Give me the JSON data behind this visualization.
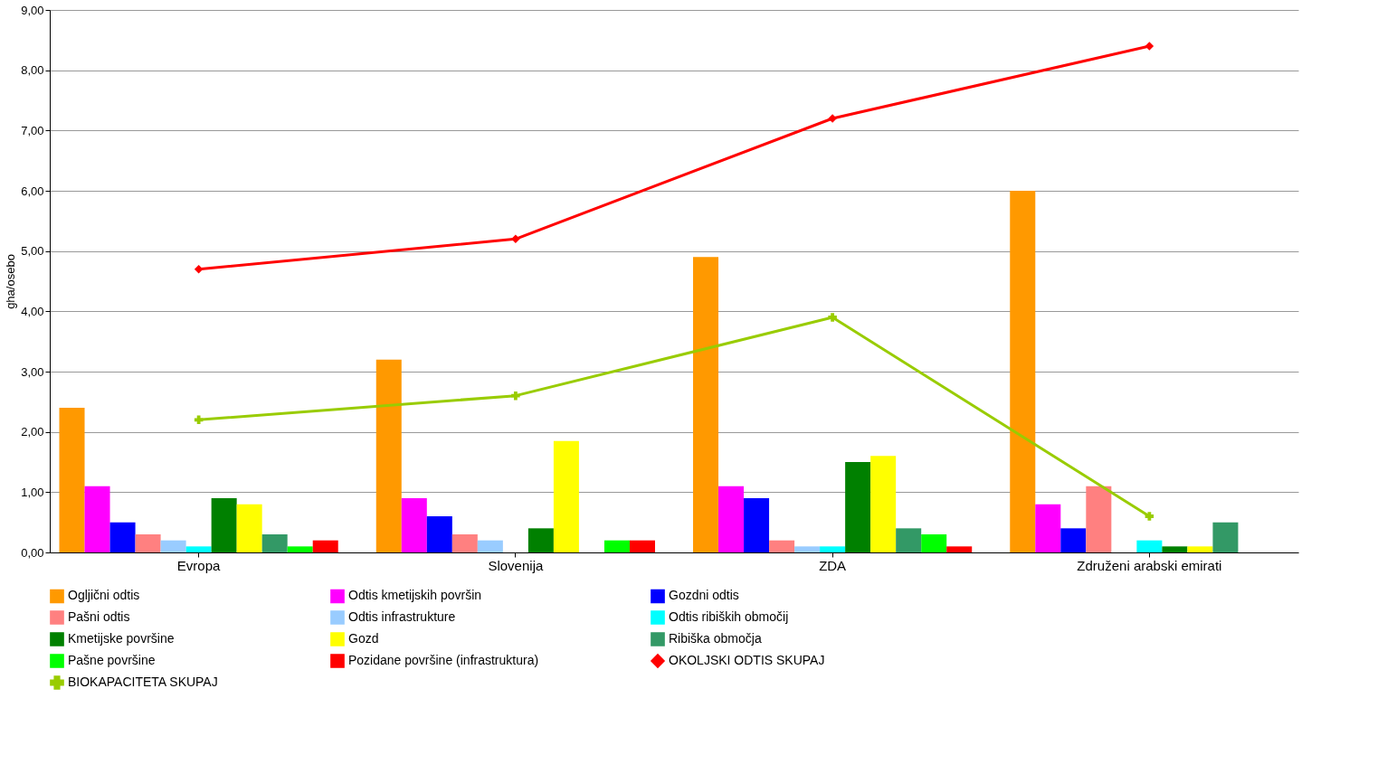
{
  "chart_data": {
    "type": "bar",
    "ylabel": "gha/osebo",
    "categories": [
      "Evropa",
      "Slovenija",
      "ZDA",
      "Združeni arabski emirati"
    ],
    "ylim": [
      0,
      9
    ],
    "yticks": [
      {
        "value": 0,
        "label": "0,00"
      },
      {
        "value": 1,
        "label": "1,00"
      },
      {
        "value": 2,
        "label": "2,00"
      },
      {
        "value": 3,
        "label": "3,00"
      },
      {
        "value": 4,
        "label": "4,00"
      },
      {
        "value": 5,
        "label": "5,00"
      },
      {
        "value": 6,
        "label": "6,00"
      },
      {
        "value": 7,
        "label": "7,00"
      },
      {
        "value": 8,
        "label": "8,00"
      },
      {
        "value": 9,
        "label": "9,00"
      }
    ],
    "grid": "y",
    "legend": "bottom",
    "series": [
      {
        "name": "Ogljični odtis",
        "color": "#ff9900",
        "values": [
          2.4,
          3.2,
          4.9,
          6.0
        ]
      },
      {
        "name": "Odtis kmetijskih površin",
        "color": "#ff00ff",
        "values": [
          1.1,
          0.9,
          1.1,
          0.8
        ]
      },
      {
        "name": "Gozdni odtis",
        "color": "#0000ff",
        "values": [
          0.5,
          0.6,
          0.9,
          0.4
        ]
      },
      {
        "name": "Pašni odtis",
        "color": "#ff8080",
        "values": [
          0.3,
          0.3,
          0.2,
          1.1
        ]
      },
      {
        "name": "Odtis infrastrukture",
        "color": "#99ccff",
        "values": [
          0.2,
          0.2,
          0.1,
          null
        ]
      },
      {
        "name": "Odtis ribiških območij",
        "color": "#00ffff",
        "values": [
          0.1,
          null,
          0.1,
          0.2
        ]
      },
      {
        "name": "Kmetijske površine",
        "color": "#008000",
        "values": [
          0.9,
          0.4,
          1.5,
          0.1
        ]
      },
      {
        "name": "Gozd",
        "color": "#ffff00",
        "values": [
          0.8,
          1.85,
          1.6,
          0.1
        ]
      },
      {
        "name": "Ribiška območja",
        "color": "#339966",
        "values": [
          0.3,
          null,
          0.4,
          0.5
        ]
      },
      {
        "name": "Pašne površine",
        "color": "#00ff00",
        "values": [
          0.1,
          0.2,
          0.3,
          null
        ]
      },
      {
        "name": "Pozidane površine (infrastruktura)",
        "color": "#ff0000",
        "values": [
          0.2,
          0.2,
          0.1,
          null
        ]
      },
      {
        "name": "OKOLJSKI ODTIS SKUPAJ",
        "type": "line",
        "color": "#ff0000",
        "marker": "diamond",
        "values": [
          4.7,
          5.2,
          7.2,
          8.4
        ]
      },
      {
        "name": "BIOKAPACITETA SKUPAJ",
        "type": "line",
        "color": "#99cc00",
        "marker": "cross",
        "values": [
          2.2,
          2.6,
          3.9,
          0.6
        ]
      }
    ]
  }
}
